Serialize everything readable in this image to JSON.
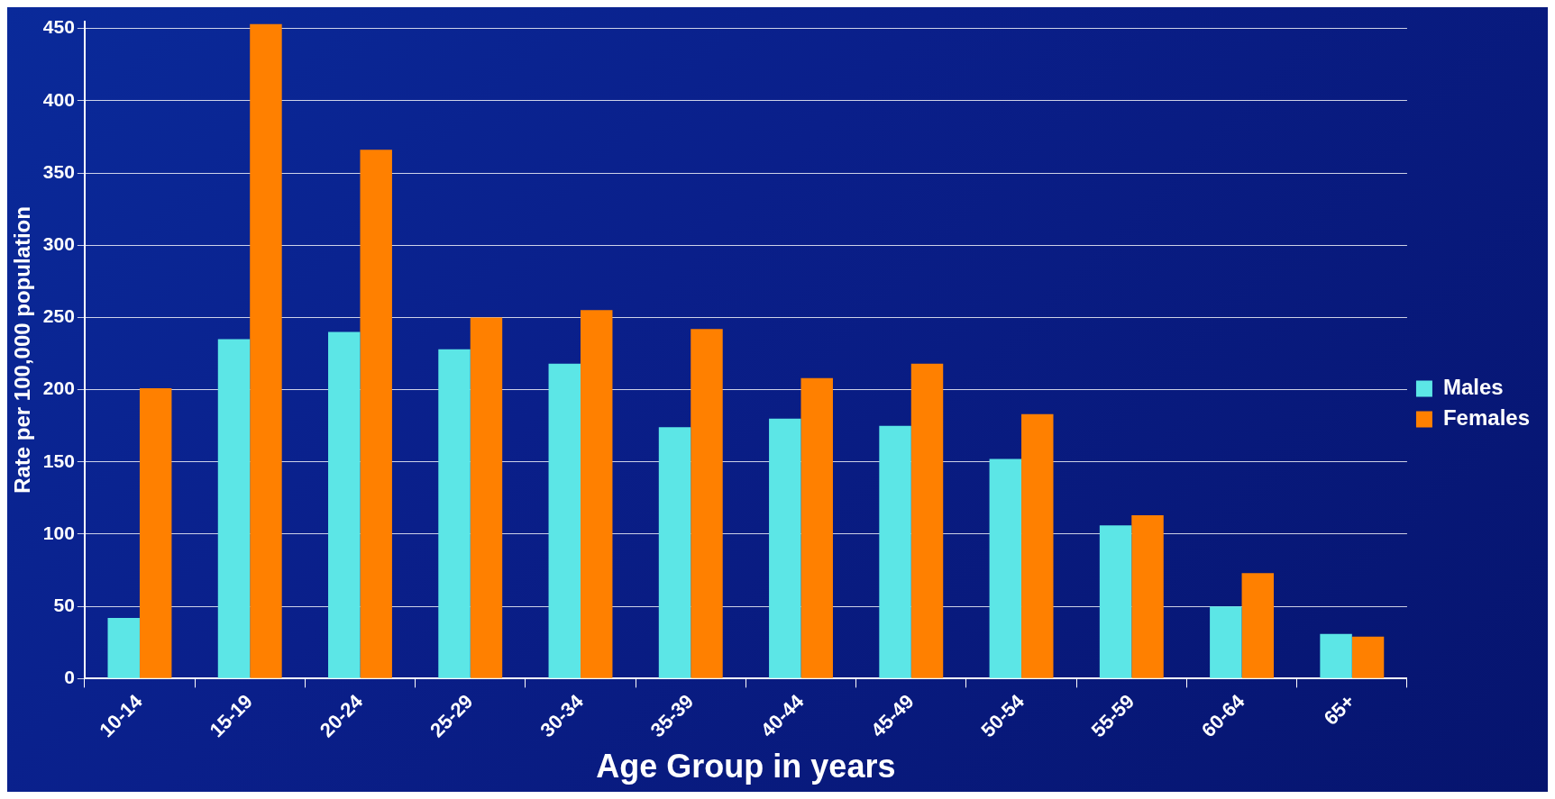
{
  "chart_data": {
    "type": "bar",
    "xlabel": "Age Group in years",
    "ylabel": "Rate per 100,000 population",
    "categories": [
      "10-14",
      "15-19",
      "20-24",
      "25-29",
      "30-34",
      "35-39",
      "40-44",
      "45-49",
      "50-54",
      "55-59",
      "60-64",
      "65+"
    ],
    "series": [
      {
        "name": "Males",
        "color": "#5ce6e6",
        "values": [
          42,
          235,
          240,
          228,
          218,
          174,
          180,
          175,
          152,
          106,
          50,
          31
        ]
      },
      {
        "name": "Females",
        "color": "#ff8000",
        "values": [
          201,
          453,
          366,
          250,
          255,
          242,
          208,
          218,
          183,
          113,
          73,
          29
        ]
      }
    ],
    "ylim": [
      0,
      455
    ],
    "yticks": [
      0,
      50,
      100,
      150,
      200,
      250,
      300,
      350,
      400,
      450
    ],
    "grid": "y",
    "legend": "right"
  }
}
